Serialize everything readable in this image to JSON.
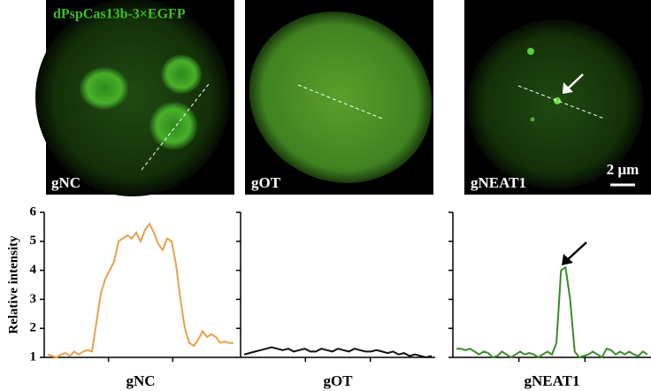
{
  "stain": "dPspCas13b-3×EGFP",
  "scale_bar": "2 µm",
  "panels": [
    {
      "label": "gNC"
    },
    {
      "label": "gOT"
    },
    {
      "label": "gNEAT1"
    }
  ],
  "chart_data": [
    {
      "type": "line",
      "xlabel": "gNC",
      "ylabel": "Relative intensity",
      "color": "#e8a04a",
      "ylim": [
        1,
        6
      ],
      "yticks": [
        1,
        2,
        3,
        4,
        5,
        6
      ],
      "tick_labels": true,
      "values": [
        1.1,
        1.05,
        1.0,
        1.1,
        1.15,
        1.05,
        1.2,
        1.1,
        1.2,
        1.25,
        1.2,
        2.2,
        3.2,
        3.7,
        4.0,
        4.3,
        5.0,
        5.1,
        5.2,
        5.1,
        5.3,
        5.0,
        5.4,
        5.6,
        5.3,
        4.9,
        4.7,
        5.1,
        5.0,
        4.2,
        3.0,
        2.0,
        1.5,
        1.4,
        1.6,
        1.9,
        1.7,
        1.8,
        1.7,
        1.5,
        1.55,
        1.5,
        1.5
      ]
    },
    {
      "type": "line",
      "xlabel": "gOT",
      "color": "#111111",
      "ylim": [
        1,
        6
      ],
      "yticks": [
        1,
        2,
        3,
        4,
        5,
        6
      ],
      "tick_labels": false,
      "values": [
        1.1,
        1.15,
        1.2,
        1.25,
        1.3,
        1.35,
        1.3,
        1.25,
        1.3,
        1.2,
        1.25,
        1.3,
        1.2,
        1.2,
        1.3,
        1.25,
        1.2,
        1.3,
        1.25,
        1.2,
        1.3,
        1.25,
        1.2,
        1.2,
        1.25,
        1.2,
        1.15,
        1.2,
        1.1,
        1.15,
        1.05,
        1.1,
        1.05,
        1.0,
        1.05
      ]
    },
    {
      "type": "line",
      "xlabel": "gNEAT1",
      "color": "#3a8a2a",
      "ylim": [
        1,
        6
      ],
      "yticks": [
        1,
        2,
        3,
        4,
        5,
        6
      ],
      "tick_labels": false,
      "values": [
        1.3,
        1.3,
        1.25,
        1.3,
        1.2,
        1.1,
        1.2,
        1.15,
        1.0,
        1.05,
        1.2,
        1.1,
        1.0,
        1.1,
        1.2,
        1.1,
        1.15,
        1.1,
        1.0,
        1.1,
        1.2,
        1.1,
        1.5,
        4.0,
        4.1,
        3.0,
        1.2,
        1.0,
        1.05,
        1.1,
        1.2,
        1.1,
        1.0,
        1.3,
        1.25,
        1.1,
        1.2,
        1.1,
        1.2,
        1.1,
        1.05,
        1.2,
        1.1
      ]
    }
  ]
}
